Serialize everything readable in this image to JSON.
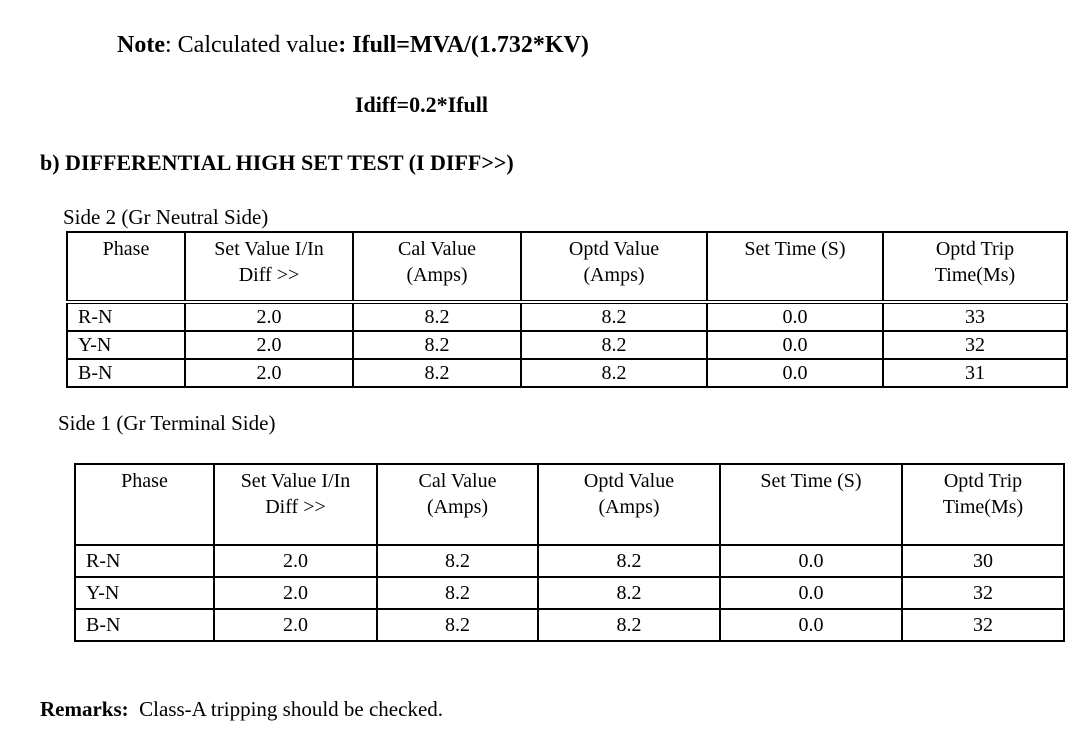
{
  "note": {
    "label": "Note",
    "colon": ": ",
    "text": "Calculated value",
    "formula": ": Ifull=MVA/(1.732*KV)"
  },
  "formula2": "Idiff=0.2*Ifull",
  "section_title": "b)  DIFFERENTIAL HIGH SET TEST (I DIFF>>)",
  "headers": [
    [
      "Phase",
      ""
    ],
    [
      "Set Value I/In",
      "Diff >>"
    ],
    [
      "Cal Value",
      "(Amps)"
    ],
    [
      "Optd Value",
      "(Amps)"
    ],
    [
      "Set  Time (S)",
      ""
    ],
    [
      "Optd Trip",
      "Time(Ms)"
    ]
  ],
  "side2": {
    "caption": "Side 2 (Gr Neutral Side)",
    "rows": [
      [
        "R-N",
        "2.0",
        "8.2",
        "8.2",
        "0.0",
        "33"
      ],
      [
        "Y-N",
        "2.0",
        "8.2",
        "8.2",
        "0.0",
        "32"
      ],
      [
        "B-N",
        "2.0",
        "8.2",
        "8.2",
        "0.0",
        "31"
      ]
    ]
  },
  "side1": {
    "caption": "Side 1 (Gr Terminal Side)",
    "rows": [
      [
        "R-N",
        "2.0",
        "8.2",
        "8.2",
        "0.0",
        "30"
      ],
      [
        "Y-N",
        "2.0",
        "8.2",
        "8.2",
        "0.0",
        "32"
      ],
      [
        "B-N",
        "2.0",
        "8.2",
        "8.2",
        "0.0",
        "32"
      ]
    ]
  },
  "remarks": {
    "label": "Remarks:",
    "text": "  Class-A tripping should be checked."
  }
}
